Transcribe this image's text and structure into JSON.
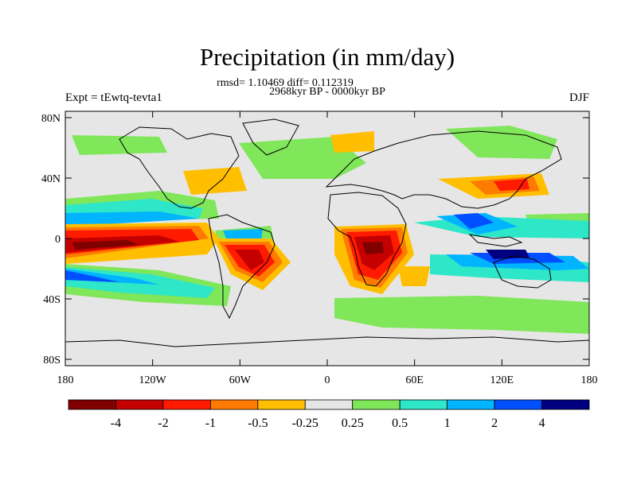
{
  "title": "Precipitation (in mm/day)",
  "stats": "rmsd= 1.10469 diff= 0.112319",
  "period": "2968kyr BP - 0000kyr BP",
  "experiment": "Expt = tEwtq-tevta1",
  "season": "DJF",
  "lat_labels": [
    "80N",
    "40N",
    "0",
    "40S",
    "80S"
  ],
  "lon_labels": [
    "180",
    "120W",
    "60W",
    "0",
    "60E",
    "120E",
    "180"
  ],
  "colorbar": {
    "labels": [
      "-4",
      "-2",
      "-1",
      "-0.5",
      "-0.25",
      "0.25",
      "0.5",
      "1",
      "2",
      "4"
    ],
    "colors": [
      "#800000",
      "#c40000",
      "#ff1a00",
      "#ff7a00",
      "#ffbf00",
      "#e6e6e6",
      "#80e65a",
      "#2ee6c8",
      "#00b4ff",
      "#0050ff",
      "#000080"
    ]
  },
  "colors": {
    "background": "#e6e6e6",
    "coast": "#000000"
  }
}
